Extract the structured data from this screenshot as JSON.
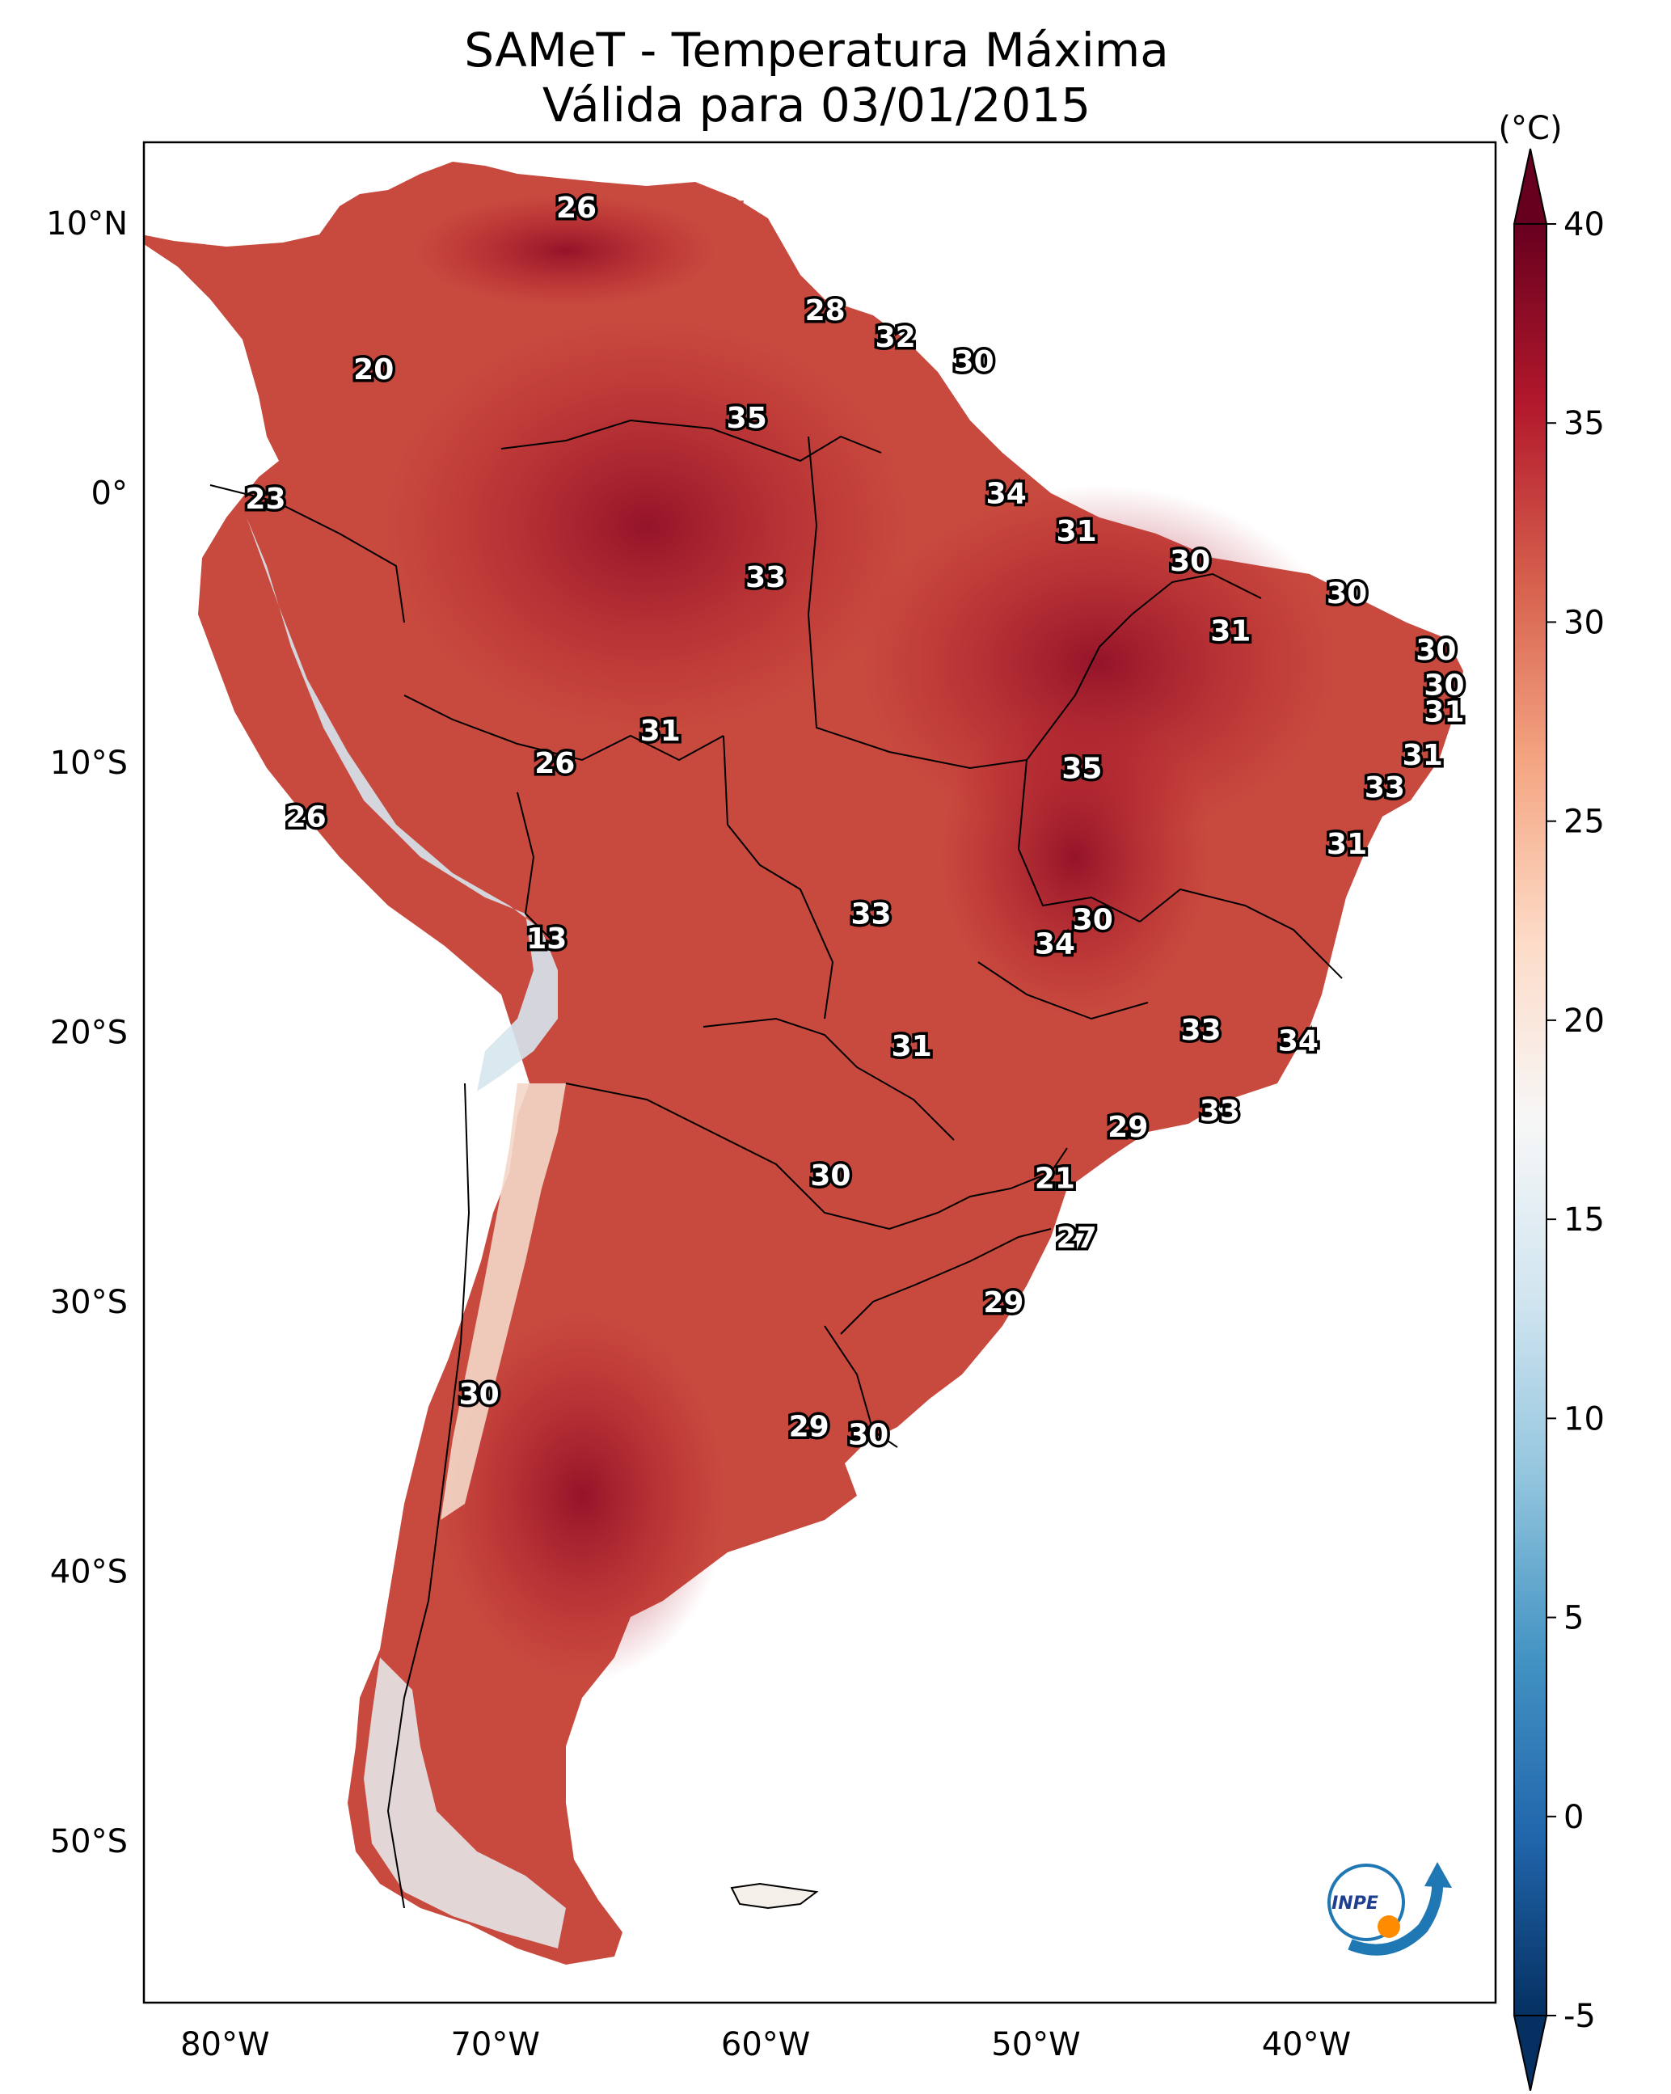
{
  "title": {
    "line1": "SAMeT - Temperatura Máxima",
    "line2": "Válida para 03/01/2015"
  },
  "axes": {
    "lat_labels": [
      "10°N",
      "0°",
      "10°S",
      "20°S",
      "30°S",
      "40°S",
      "50°S"
    ],
    "lon_labels": [
      "80°W",
      "70°W",
      "60°W",
      "50°W",
      "40°W"
    ],
    "lat_values": [
      10,
      0,
      -10,
      -20,
      -30,
      -40,
      -50
    ],
    "lon_values": [
      -80,
      -70,
      -60,
      -50,
      -40
    ],
    "lon_range": [
      -83,
      -33
    ],
    "lat_range": [
      -56,
      13
    ]
  },
  "colorbar": {
    "unit": "(°C)",
    "ticks": [
      "40",
      "35",
      "30",
      "25",
      "20",
      "15",
      "10",
      "5",
      "0",
      "-5"
    ],
    "tick_values": [
      40,
      35,
      30,
      25,
      20,
      15,
      10,
      5,
      0,
      -5
    ],
    "range": [
      -5,
      40
    ],
    "colors": [
      "#053061",
      "#2166ac",
      "#4393c3",
      "#92c5de",
      "#d1e5f0",
      "#f7f7f7",
      "#fddbc7",
      "#f4a582",
      "#d6604d",
      "#b2182b",
      "#67001f"
    ]
  },
  "city_values": [
    {
      "value": "26",
      "lon": -67,
      "lat": 10.6
    },
    {
      "value": "20",
      "lon": -74.5,
      "lat": 4.6
    },
    {
      "value": "28",
      "lon": -57.8,
      "lat": 6.8
    },
    {
      "value": "32",
      "lon": -55.2,
      "lat": 5.8
    },
    {
      "value": "30",
      "lon": -52.3,
      "lat": 4.9
    },
    {
      "value": "35",
      "lon": -60.7,
      "lat": 2.8
    },
    {
      "value": "23",
      "lon": -78.5,
      "lat": -0.2
    },
    {
      "value": "34",
      "lon": -51.1,
      "lat": 0.0
    },
    {
      "value": "31",
      "lon": -48.5,
      "lat": -1.4
    },
    {
      "value": "33",
      "lon": -60.0,
      "lat": -3.1
    },
    {
      "value": "30",
      "lon": -44.3,
      "lat": -2.5
    },
    {
      "value": "30",
      "lon": -38.5,
      "lat": -3.7
    },
    {
      "value": "31",
      "lon": -42.8,
      "lat": -5.1
    },
    {
      "value": "30",
      "lon": -35.2,
      "lat": -5.8
    },
    {
      "value": "30",
      "lon": -34.9,
      "lat": -7.1
    },
    {
      "value": "31",
      "lon": -34.9,
      "lat": -8.1
    },
    {
      "value": "31",
      "lon": -35.7,
      "lat": -9.7
    },
    {
      "value": "33",
      "lon": -37.1,
      "lat": -10.9
    },
    {
      "value": "31",
      "lon": -63.9,
      "lat": -8.8
    },
    {
      "value": "26",
      "lon": -67.8,
      "lat": -10.0
    },
    {
      "value": "35",
      "lon": -48.3,
      "lat": -10.2
    },
    {
      "value": "26",
      "lon": -77.0,
      "lat": -12.0
    },
    {
      "value": "31",
      "lon": -38.5,
      "lat": -13.0
    },
    {
      "value": "13",
      "lon": -68.1,
      "lat": -16.5
    },
    {
      "value": "33",
      "lon": -56.1,
      "lat": -15.6
    },
    {
      "value": "30",
      "lon": -47.9,
      "lat": -15.8
    },
    {
      "value": "34",
      "lon": -49.3,
      "lat": -16.7
    },
    {
      "value": "33",
      "lon": -43.9,
      "lat": -19.9
    },
    {
      "value": "34",
      "lon": -40.3,
      "lat": -20.3
    },
    {
      "value": "31",
      "lon": -54.6,
      "lat": -20.5
    },
    {
      "value": "33",
      "lon": -43.2,
      "lat": -22.9
    },
    {
      "value": "29",
      "lon": -46.6,
      "lat": -23.5
    },
    {
      "value": "21",
      "lon": -49.3,
      "lat": -25.4
    },
    {
      "value": "30",
      "lon": -57.6,
      "lat": -25.3
    },
    {
      "value": "27",
      "lon": -48.5,
      "lat": -27.6
    },
    {
      "value": "29",
      "lon": -51.2,
      "lat": -30.0
    },
    {
      "value": "30",
      "lon": -70.6,
      "lat": -33.4
    },
    {
      "value": "29",
      "lon": -58.4,
      "lat": -34.6
    },
    {
      "value": "30",
      "lon": -56.2,
      "lat": -34.9
    }
  ],
  "logo": {
    "text": "INPE"
  }
}
